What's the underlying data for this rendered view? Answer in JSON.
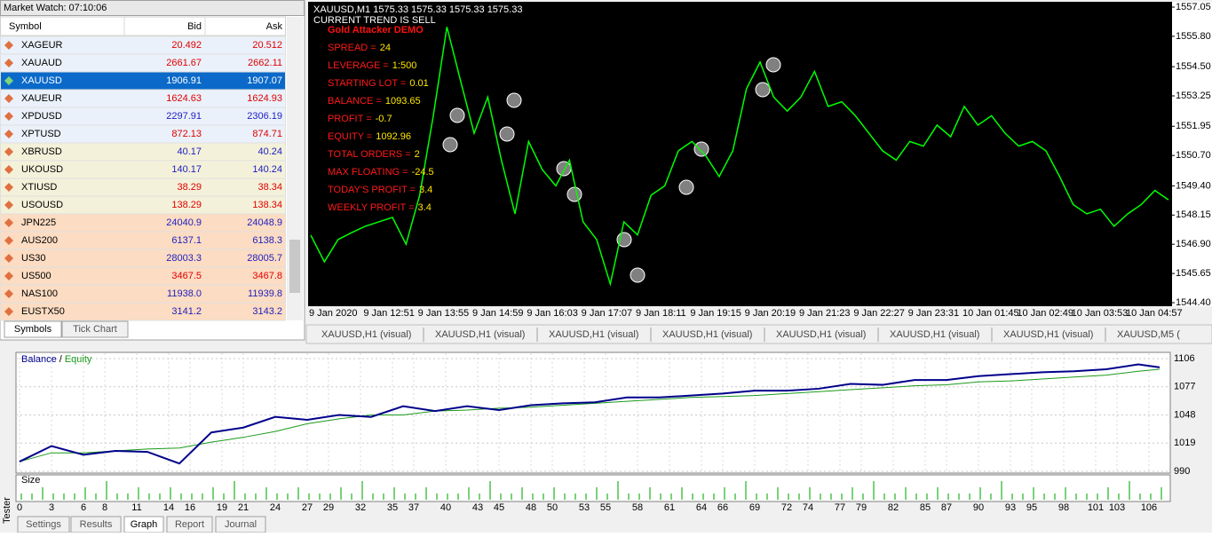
{
  "market_watch": {
    "title": "Market Watch: 07:10:06",
    "columns": [
      "Symbol",
      "Bid",
      "Ask"
    ],
    "selected": 2,
    "rows": [
      {
        "symbol": "XAGEUR",
        "bid": "20.492",
        "ask": "20.512",
        "color": "#e00000",
        "background": "#eaf1fa"
      },
      {
        "symbol": "XAUAUD",
        "bid": "2661.67",
        "ask": "2662.11",
        "color": "#e00000",
        "background": "#eaf1fa"
      },
      {
        "symbol": "XAUUSD",
        "bid": "1906.91",
        "ask": "1907.07",
        "color": "#ffffff",
        "background": "#0b6ac9"
      },
      {
        "symbol": "XAUEUR",
        "bid": "1624.63",
        "ask": "1624.93",
        "color": "#e00000",
        "background": "#eaf1fa"
      },
      {
        "symbol": "XPDUSD",
        "bid": "2297.91",
        "ask": "2306.19",
        "color": "#2020c0",
        "background": "#eaf1fa"
      },
      {
        "symbol": "XPTUSD",
        "bid": "872.13",
        "ask": "874.71",
        "color": "#e00000",
        "background": "#eaf1fa"
      },
      {
        "symbol": "XBRUSD",
        "bid": "40.17",
        "ask": "40.24",
        "color": "#2020c0",
        "background": "#f4f1da"
      },
      {
        "symbol": "UKOUSD",
        "bid": "140.17",
        "ask": "140.24",
        "color": "#2020c0",
        "background": "#f4f1da"
      },
      {
        "symbol": "XTIUSD",
        "bid": "38.29",
        "ask": "38.34",
        "color": "#e00000",
        "background": "#f4f1da"
      },
      {
        "symbol": "USOUSD",
        "bid": "138.29",
        "ask": "138.34",
        "color": "#e00000",
        "background": "#f4f1da"
      },
      {
        "symbol": "JPN225",
        "bid": "24040.9",
        "ask": "24048.9",
        "color": "#2020c0",
        "background": "#fcdcc2"
      },
      {
        "symbol": "AUS200",
        "bid": "6137.1",
        "ask": "6138.3",
        "color": "#2020c0",
        "background": "#fcdcc2"
      },
      {
        "symbol": "US30",
        "bid": "28003.3",
        "ask": "28005.7",
        "color": "#2020c0",
        "background": "#fcdcc2"
      },
      {
        "symbol": "US500",
        "bid": "3467.5",
        "ask": "3467.8",
        "color": "#e00000",
        "background": "#fcdcc2"
      },
      {
        "symbol": "NAS100",
        "bid": "11938.0",
        "ask": "11939.8",
        "color": "#2020c0",
        "background": "#fcdcc2"
      },
      {
        "symbol": "EUSTX50",
        "bid": "3141.2",
        "ask": "3143.2",
        "color": "#2020c0",
        "background": "#fcdcc2"
      }
    ],
    "tabs": [
      "Symbols",
      "Tick Chart"
    ]
  },
  "expert": {
    "title": "Gold Attacker DEMO",
    "items": [
      {
        "label": "SPREAD =",
        "value": "24"
      },
      {
        "label": "LEVERAGE =",
        "value": "1:500"
      },
      {
        "label": "STARTING LOT =",
        "value": "0.01"
      },
      {
        "label": "BALANCE =",
        "value": "1093.65"
      },
      {
        "label": "PROFIT =",
        "value": "-0.7"
      },
      {
        "label": "EQUITY =",
        "value": "1092.96"
      },
      {
        "label": "TOTAL ORDERS =",
        "value": "2"
      },
      {
        "label": "MAX FLOATING =",
        "value": "-24.5"
      },
      {
        "label": "TODAY'S PROFIT =",
        "value": "3.4"
      },
      {
        "label": "WEEKLY PROFIT =",
        "value": "3.4"
      }
    ]
  },
  "chart_tabs": [
    "XAUUSD,H1 (visual)",
    "XAUUSD,H1 (visual)",
    "XAUUSD,H1 (visual)",
    "XAUUSD,H1 (visual)",
    "XAUUSD,H1 (visual)",
    "XAUUSD,H1 (visual)",
    "XAUUSD,H1 (visual)",
    "XAUUSD,M5 ("
  ],
  "tester": {
    "side_label": "Tester",
    "tabs": [
      "Settings",
      "Results",
      "Graph",
      "Report",
      "Journal"
    ],
    "active": 2,
    "legend_separator": "/"
  },
  "chart_data": [
    {
      "type": "line",
      "title": "XAUUSD,M1  1575.33 1575.33 1575.33 1575.33",
      "subtitle": "CURRENT TREND IS SELL",
      "color": "#00ff00",
      "categories": [
        "9 Jan 2020",
        null,
        null,
        null,
        "9 Jan 12:51",
        null,
        null,
        null,
        "9 Jan 13:55",
        null,
        null,
        null,
        "9 Jan 14:59",
        null,
        null,
        null,
        "9 Jan 16:03",
        null,
        null,
        null,
        "9 Jan 17:07",
        null,
        null,
        null,
        "9 Jan 18:11",
        null,
        null,
        null,
        "9 Jan 19:15",
        null,
        null,
        null,
        "9 Jan 20:19",
        null,
        null,
        null,
        "9 Jan 21:23",
        null,
        null,
        null,
        "9 Jan 22:27",
        null,
        null,
        null,
        "9 Jan 23:31",
        null,
        null,
        null,
        "10 Jan 01:45",
        null,
        null,
        null,
        "10 Jan 02:49",
        null,
        null,
        null,
        "10 Jan 03:53",
        null,
        null,
        null,
        "10 Jan 04:57",
        null,
        null,
        null
      ],
      "values": [
        1547.29,
        1546.15,
        1547.1,
        1547.4,
        1547.67,
        1547.86,
        1548.05,
        1546.9,
        1549.0,
        1552.4,
        1556.2,
        1553.9,
        1551.65,
        1553.2,
        1550.5,
        1548.2,
        1551.3,
        1550.1,
        1549.4,
        1550.5,
        1547.86,
        1547.1,
        1545.2,
        1547.86,
        1547.3,
        1549.0,
        1549.4,
        1550.9,
        1551.3,
        1550.7,
        1549.8,
        1550.9,
        1553.55,
        1554.7,
        1553.2,
        1552.6,
        1553.2,
        1554.3,
        1552.8,
        1553.0,
        1552.4,
        1551.65,
        1550.9,
        1550.5,
        1551.3,
        1551.1,
        1552.0,
        1551.5,
        1552.8,
        1552.0,
        1552.4,
        1551.65,
        1551.1,
        1551.3,
        1550.9,
        1549.8,
        1548.6,
        1548.2,
        1548.4,
        1547.67,
        1548.2,
        1548.6,
        1549.2,
        1548.8
      ],
      "ylim": [
        1544.4,
        1557.05
      ],
      "yticks": [
        1557.05,
        {
          "value": 1555.8,
          "label": "1555.80"
        },
        {
          "value": 1554.5,
          "label": "1554.50"
        },
        1553.25,
        1551.95,
        {
          "value": 1550.7,
          "label": "1550.70"
        },
        {
          "value": 1549.4,
          "label": "1549.40"
        },
        1548.15,
        {
          "value": 1546.9,
          "label": "1546.90"
        },
        1545.65,
        {
          "value": 1544.4,
          "label": "1544.40"
        }
      ]
    },
    {
      "type": "line",
      "grid": true,
      "x": [
        0,
        3,
        6,
        9,
        12,
        15,
        18,
        21,
        24,
        27,
        30,
        33,
        36,
        39,
        42,
        45,
        48,
        51,
        54,
        57,
        60,
        63,
        66,
        69,
        72,
        75,
        78,
        81,
        84,
        87,
        90,
        93,
        96,
        99,
        102,
        105,
        107
      ],
      "series": [
        {
          "name": "Balance",
          "color": "#00008b",
          "values": [
            1000,
            1016,
            1007,
            1011,
            1010,
            998,
            1030,
            1035,
            1046,
            1043,
            1048,
            1046,
            1057,
            1052,
            1057,
            1053,
            1058,
            1060,
            1061,
            1066,
            1066,
            1068,
            1070,
            1073,
            1073,
            1075,
            1080,
            1079,
            1084,
            1084,
            1088,
            1090,
            1092,
            1093,
            1095,
            1100,
            1097
          ]
        },
        {
          "name": "Equity",
          "color": "#1a9a1a",
          "values": [
            1000,
            1009,
            1009,
            1011,
            1013,
            1014,
            1020,
            1025,
            1031,
            1039,
            1044,
            1048,
            1048,
            1052,
            1053,
            1055,
            1056,
            1058,
            1060,
            1062,
            1064,
            1066,
            1067,
            1068,
            1070,
            1072,
            1074,
            1076,
            1078,
            1079,
            1082,
            1083,
            1085,
            1087,
            1089,
            1093,
            1095
          ]
        }
      ],
      "xlim": [
        0,
        108
      ],
      "xticks": [
        0,
        3,
        6,
        8,
        11,
        14,
        16,
        19,
        21,
        24,
        27,
        29,
        32,
        35,
        37,
        40,
        43,
        45,
        48,
        50,
        53,
        55,
        58,
        61,
        64,
        66,
        69,
        72,
        74,
        77,
        79,
        82,
        85,
        87,
        90,
        93,
        95,
        98,
        101,
        103,
        106
      ],
      "ylim": [
        990,
        1106
      ],
      "yticks": [
        1106,
        1077,
        1048,
        1019,
        990
      ]
    },
    {
      "type": "bar",
      "title": "Size",
      "color": "#1db31d",
      "values": [
        1,
        1,
        2,
        1,
        1,
        1,
        2,
        1,
        3,
        1,
        1,
        2,
        1,
        1,
        2,
        1,
        1,
        1,
        2,
        1,
        3,
        1,
        1,
        2,
        1,
        1,
        2,
        1,
        1,
        1,
        2,
        1,
        3,
        1,
        1,
        2,
        1,
        1,
        2,
        1,
        1,
        1,
        2,
        1,
        3,
        1,
        1,
        2,
        1,
        1,
        2,
        1,
        1,
        1,
        2,
        1,
        3,
        1,
        1,
        2,
        1,
        1,
        2,
        1,
        1,
        1,
        2,
        1,
        3,
        1,
        1,
        2,
        1,
        1,
        2,
        1,
        1,
        1,
        2,
        1,
        3,
        1,
        1,
        2,
        1,
        1,
        2,
        1,
        1,
        1,
        2,
        1,
        3,
        1,
        1,
        2,
        1,
        1,
        2,
        1,
        1,
        1,
        2,
        1,
        3,
        1,
        1,
        2
      ]
    }
  ]
}
